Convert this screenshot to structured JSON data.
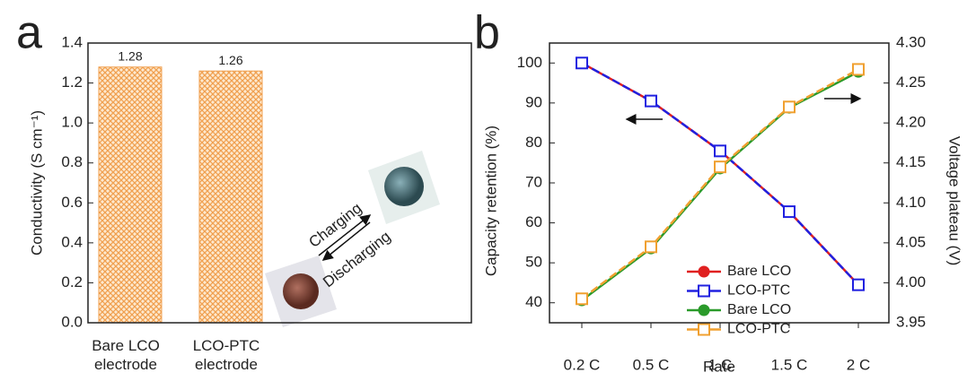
{
  "chart_data": [
    {
      "type": "bar",
      "panel_label": "a",
      "ylabel": "Conductivity (S cm⁻¹)",
      "categories": [
        "Bare LCO electrode",
        "LCO-PTC electrode"
      ],
      "values": [
        1.28,
        1.26
      ],
      "color": "#f0a050",
      "ylim": [
        0,
        1.4
      ],
      "yticks": [
        {
          "value": 0,
          "label": "0.0"
        },
        0.2,
        0.4,
        0.6,
        0.8,
        {
          "value": 1,
          "label": "1.0"
        },
        1.2,
        1.4
      ],
      "annotations": [
        "Charging",
        "Discharging"
      ]
    },
    {
      "type": "line",
      "panel_label": "b",
      "xlabel": "Rate",
      "ylabel": "Capacity retention (%)",
      "y2label": "Voltage plateau (V)",
      "categories": [
        "0.2 C",
        "0.5 C",
        "1 C",
        "1.5 C",
        "2 C"
      ],
      "ylim": [
        35,
        105
      ],
      "yticks": [
        40,
        50,
        60,
        70,
        80,
        90,
        100
      ],
      "y2lim": [
        3.95,
        4.3
      ],
      "y2ticks": [
        3.95,
        {
          "value": 4,
          "label": "4.00"
        },
        4.05,
        {
          "value": 4.1,
          "label": "4.10"
        },
        4.15,
        {
          "value": 4.2,
          "label": "4.20"
        },
        4.25,
        {
          "value": 4.3,
          "label": "4.30"
        }
      ],
      "series": [
        {
          "name": "Bare LCO",
          "color": "#e02020",
          "marker": "circle",
          "values": [
            100,
            90.5,
            78,
            62.8,
            44.5
          ]
        },
        {
          "name": "LCO-PTC",
          "color": "#2020e0",
          "marker": "square",
          "values": [
            100,
            90.5,
            78,
            62.8,
            44.5
          ]
        },
        {
          "name": "Bare LCO",
          "color": "#2a9a2a",
          "marker": "circle",
          "axis": "y2",
          "values": [
            3.978,
            4.043,
            4.143,
            4.219,
            4.264
          ]
        },
        {
          "name": "LCO-PTC",
          "color": "#f0a030",
          "marker": "square",
          "axis": "y2",
          "values": [
            3.98,
            4.045,
            4.145,
            4.22,
            4.267
          ]
        }
      ]
    }
  ]
}
